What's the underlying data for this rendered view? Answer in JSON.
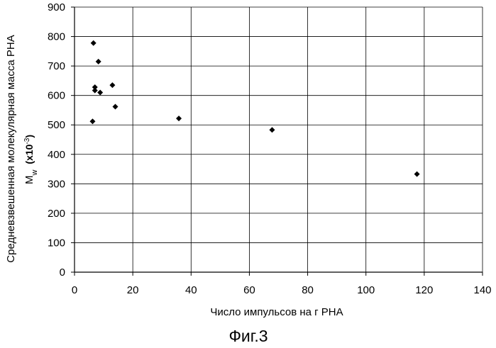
{
  "chart_data": {
    "type": "scatter",
    "xlabel": "Число импульсов на г PHA",
    "ylabel": {
      "line1": "Средневзвешенная молекулярная масса PHA",
      "m": "M",
      "w": "w",
      "unit": "(x10",
      "exp": "-3",
      "close": ")"
    },
    "xlim": [
      0,
      140
    ],
    "ylim": [
      0,
      900
    ],
    "xticks": [
      0,
      20,
      40,
      60,
      80,
      100,
      120,
      140
    ],
    "yticks": [
      0,
      100,
      200,
      300,
      400,
      500,
      600,
      700,
      800,
      900
    ],
    "grid": true,
    "marker": "diamond",
    "marker_color": "#000000",
    "points": [
      {
        "x": 6.5,
        "y": 778
      },
      {
        "x": 8.2,
        "y": 715
      },
      {
        "x": 7.0,
        "y": 628
      },
      {
        "x": 7.0,
        "y": 617
      },
      {
        "x": 8.8,
        "y": 610
      },
      {
        "x": 13.0,
        "y": 635
      },
      {
        "x": 14.0,
        "y": 562
      },
      {
        "x": 6.2,
        "y": 512
      },
      {
        "x": 35.8,
        "y": 522
      },
      {
        "x": 67.8,
        "y": 483
      },
      {
        "x": 117.5,
        "y": 333
      }
    ]
  },
  "caption": "Фиг.3"
}
